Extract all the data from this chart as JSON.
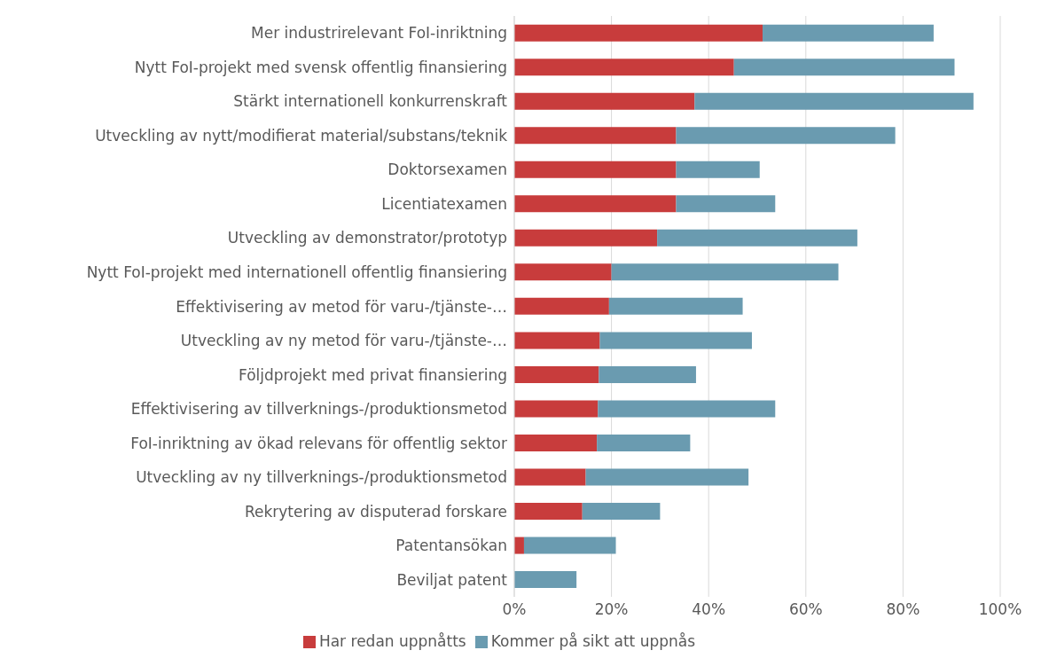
{
  "chart_data": {
    "type": "bar",
    "orientation": "horizontal",
    "stacked": true,
    "categories": [
      "Mer industrirelevant FoI-inriktning",
      "Nytt FoI-projekt med svensk offentlig finansiering",
      "Stärkt internationell konkurrenskraft",
      "Utveckling av nytt/modifierat material/substans/teknik",
      "Doktorsexamen",
      "Licentiatexamen",
      "Utveckling av demonstrator/prototyp",
      "Nytt FoI-projekt med internationell offentlig finansiering",
      "Effektivisering av metod för varu-/tjänste-…",
      "Utveckling av ny metod för varu-/tjänste-…",
      "Följdprojekt med privat finansiering",
      "Effektivisering av tillverknings-/produktionsmetod",
      "FoI-inriktning av ökad relevans för offentlig sektor",
      "Utveckling av ny tillverknings-/produktionsmetod",
      "Rekrytering av disputerad forskare",
      "Patentansökan",
      "Beviljat patent"
    ],
    "series": [
      {
        "name": "Har redan uppnåtts",
        "color": "#c83c3c",
        "values": [
          51.1,
          45.2,
          37.1,
          33.3,
          33.3,
          33.3,
          29.4,
          20.0,
          19.5,
          17.6,
          17.4,
          17.2,
          17.0,
          14.7,
          14.0,
          2.0,
          0
        ]
      },
      {
        "name": "Kommer på sikt att uppnås",
        "color": "#6a9bb0",
        "values": [
          35.2,
          45.4,
          57.4,
          45.1,
          17.2,
          20.4,
          41.2,
          46.7,
          27.5,
          31.3,
          20.0,
          36.5,
          19.2,
          33.5,
          16.0,
          18.9,
          12.8
        ]
      }
    ],
    "xlim": [
      0,
      100
    ],
    "xticks": [
      {
        "value": 0,
        "label": "0%"
      },
      {
        "value": 20,
        "label": "20%"
      },
      {
        "value": 40,
        "label": "40%"
      },
      {
        "value": 60,
        "label": "60%"
      },
      {
        "value": 80,
        "label": "80%"
      },
      {
        "value": 100,
        "label": "100%"
      }
    ],
    "grid": "x",
    "legend": "bottom"
  }
}
